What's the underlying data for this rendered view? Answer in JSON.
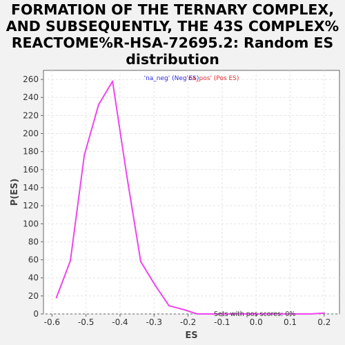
{
  "chart_data": {
    "type": "line",
    "title_lines": [
      "FORMATION OF THE TERNARY COMPLEX,",
      "AND SUBSEQUENTLY, THE 43S COMPLEX%",
      "REACTOME%R-HSA-72695.2: Random ES",
      "distribution"
    ],
    "xlabel": "ES",
    "ylabel": "P(ES)",
    "xlim": [
      -0.625,
      0.245
    ],
    "ylim": [
      0,
      270
    ],
    "x_ticks": [
      -0.6,
      -0.5,
      -0.4,
      -0.3,
      -0.2,
      -0.1,
      0.0,
      0.1,
      0.2
    ],
    "x_tick_labels": [
      "-0.6",
      "-0.5",
      "-0.4",
      "-0.3",
      "-0.2",
      "-0.1",
      "0.0",
      "0.1",
      "0.2"
    ],
    "y_ticks": [
      0,
      20,
      40,
      60,
      80,
      100,
      120,
      140,
      160,
      180,
      200,
      220,
      240,
      260
    ],
    "y_tick_labels": [
      "0",
      "20",
      "40",
      "60",
      "80",
      "100",
      "120",
      "140",
      "160",
      "180",
      "200",
      "220",
      "240",
      "260"
    ],
    "grid": true,
    "legend": {
      "placement": "top-center",
      "entries": [
        {
          "text": "'na_neg' (Neg ES)",
          "color": "#2a2ae0"
        },
        {
          "text": "'na_pos' (Pos ES)",
          "color": "#e02a2a"
        }
      ]
    },
    "annotation": "Sets with pos scores: 0%",
    "series": [
      {
        "color": "#ee44ee",
        "x": [
          -0.587,
          -0.546,
          -0.505,
          -0.463,
          -0.422,
          -0.38,
          -0.339,
          -0.297,
          -0.256,
          -0.214,
          -0.173,
          -0.131,
          -0.09,
          -0.049,
          -0.007,
          0.034,
          0.076,
          0.117,
          0.159,
          0.2
        ],
        "y": [
          18,
          59,
          176,
          232,
          258,
          153,
          58,
          32,
          9,
          5,
          0,
          0,
          0,
          0,
          0,
          0,
          0,
          0,
          0,
          1
        ]
      }
    ]
  }
}
